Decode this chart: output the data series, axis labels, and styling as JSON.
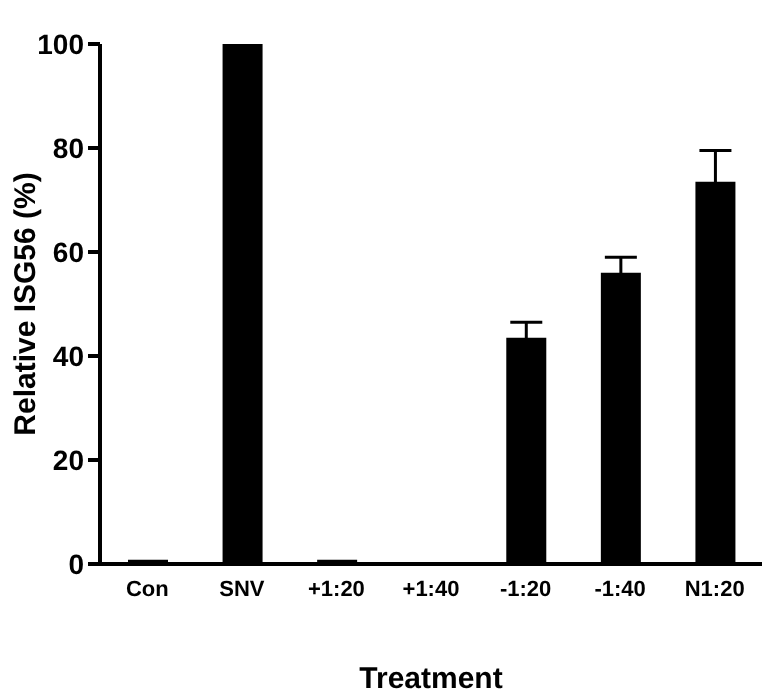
{
  "chart_data": {
    "type": "bar",
    "xlabel": "Treatment",
    "ylabel": "Relative ISG56 (%)",
    "categories": [
      "Con",
      "SNV",
      "+1:20",
      "+1:40",
      "-1:20",
      "-1:40",
      "N1:20"
    ],
    "values": [
      0.8,
      100,
      0.8,
      0.3,
      43.5,
      56,
      73.5
    ],
    "errors": [
      null,
      null,
      null,
      null,
      3,
      3,
      6
    ],
    "color": "#000000",
    "ylim": [
      0,
      100
    ],
    "yticks": [
      0,
      20,
      40,
      60,
      80,
      100
    ],
    "grid": false,
    "legend": false
  }
}
